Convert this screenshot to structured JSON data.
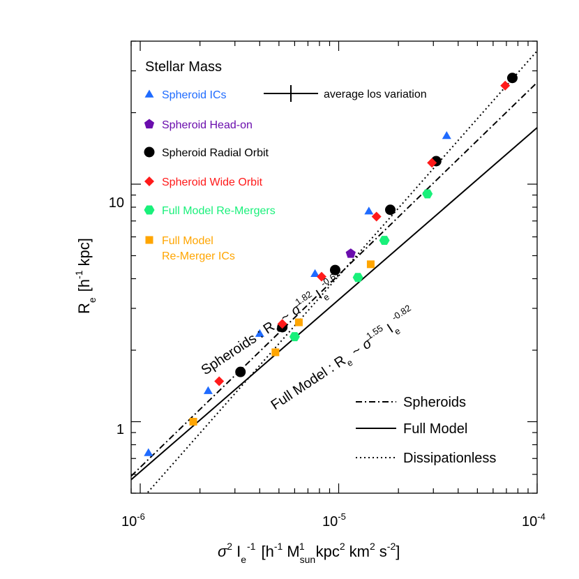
{
  "chart_data": {
    "type": "scatter",
    "title": "Stellar Mass",
    "x_axis": {
      "scale": "log",
      "range": [
        9e-07,
        0.0001
      ],
      "label_main": "σ",
      "label_sup1": "2",
      "label_I": "I",
      "label_sub_e": "e",
      "label_sup2": "-1",
      "label_units": {
        "open": "[h",
        "sup_a": "-1",
        "m": "M",
        "sub_sun": "sun",
        "sup_b": "-1",
        "kpc": "kpc",
        "sup_c": "2",
        "km": "km",
        "sup_d": "2",
        "s": "s",
        "sup_e": "-2",
        "close": "]"
      },
      "ticks": [
        {
          "value": 1e-06,
          "base": "10",
          "exp": "-6"
        },
        {
          "value": 1e-05,
          "base": "10",
          "exp": "-5"
        },
        {
          "value": 0.0001,
          "base": "10",
          "exp": "-4"
        }
      ]
    },
    "y_axis": {
      "scale": "log",
      "range": [
        0.5,
        40
      ],
      "label_main": "R",
      "label_sub": "e",
      "label_units": "[h",
      "label_sup": "-1",
      "label_tail": "kpc]",
      "ticks": [
        {
          "value": 1,
          "label": "1"
        },
        {
          "value": 10,
          "label": "10"
        }
      ]
    },
    "legend_items": [
      {
        "label": "Spheroid ICs",
        "color": "#1f6bff",
        "marker": "triangle"
      },
      {
        "label": "Spheroid Head-on",
        "color": "#6a0dad",
        "marker": "pentagon"
      },
      {
        "label": "Spheroid Radial Orbit",
        "color": "#000000",
        "marker": "circle"
      },
      {
        "label": "Spheroid Wide Orbit",
        "color": "#ff1a1a",
        "marker": "diamond"
      },
      {
        "label": "Full Model Re-Mergers",
        "color": "#19f07a",
        "marker": "hexagon"
      },
      {
        "label": "Full Model",
        "label2": "Re-Merger ICs",
        "color": "#ffa500",
        "marker": "square"
      }
    ],
    "errorbar_label": "average los variation",
    "line_legend": [
      {
        "label": "Spheroids",
        "style": "dashdot"
      },
      {
        "label": "Full Model",
        "style": "solid"
      },
      {
        "label": "Dissipationless",
        "style": "dotted"
      }
    ],
    "fit_lines": [
      {
        "name": "Spheroids",
        "style": "dashdot",
        "x": [
          9e-07,
          0.0001
        ],
        "y": [
          0.59,
          26.8
        ]
      },
      {
        "name": "Full Model",
        "style": "solid",
        "x": [
          9e-07,
          0.0001
        ],
        "y": [
          0.57,
          17.3
        ]
      },
      {
        "name": "Dissipationless",
        "style": "dotted",
        "x": [
          9e-07,
          0.0001
        ],
        "y": [
          0.42,
          36.4
        ]
      }
    ],
    "annotations": [
      {
        "text": "Spheroids : R",
        "sub": "e",
        "sim": "~",
        "sigma": "σ",
        "sup1": "1.82",
        "I": "I",
        "sub2": "e",
        "sup2": "-0.67"
      },
      {
        "text": "Full Model : R",
        "sub": "e",
        "sim": "~",
        "sigma": "σ",
        "sup1": "1.55",
        "I": "I",
        "sub2": "e",
        "sup2": "-0.82"
      }
    ],
    "series": [
      {
        "name": "Spheroid ICs",
        "marker": "triangle",
        "color": "#1f6bff",
        "points": [
          [
            1.1e-06,
            0.74
          ],
          [
            2.2e-06,
            1.35
          ],
          [
            4e-06,
            2.35
          ],
          [
            7.6e-06,
            4.2
          ],
          [
            1.42e-05,
            7.7
          ],
          [
            3.5e-05,
            16
          ]
        ]
      },
      {
        "name": "Spheroid Head-on",
        "marker": "pentagon",
        "color": "#6a0dad",
        "points": [
          [
            1.15e-05,
            5.1
          ]
        ]
      },
      {
        "name": "Spheroid Radial Orbit",
        "marker": "circle",
        "color": "#000000",
        "points": [
          [
            3.2e-06,
            1.62
          ],
          [
            5.2e-06,
            2.5
          ],
          [
            9.6e-06,
            4.35
          ],
          [
            1.82e-05,
            7.8
          ],
          [
            3.1e-05,
            12.5
          ],
          [
            7.5e-05,
            28
          ]
        ]
      },
      {
        "name": "Spheroid Wide Orbit",
        "marker": "diamond",
        "color": "#ff1a1a",
        "points": [
          [
            2.5e-06,
            1.48
          ],
          [
            5.2e-06,
            2.58
          ],
          [
            8.2e-06,
            4.08
          ],
          [
            1.55e-05,
            7.3
          ],
          [
            2.95e-05,
            12.3
          ],
          [
            6.9e-05,
            26
          ]
        ]
      },
      {
        "name": "Full Model Re-Mergers",
        "marker": "hexagon",
        "color": "#19f07a",
        "points": [
          [
            6e-06,
            2.28
          ],
          [
            1.25e-05,
            4.05
          ],
          [
            1.7e-05,
            5.8
          ],
          [
            2.8e-05,
            9.1
          ]
        ]
      },
      {
        "name": "Full Model Re-Merger ICs",
        "marker": "square",
        "color": "#ffa500",
        "points": [
          [
            1.85e-06,
            1.0
          ],
          [
            4.8e-06,
            1.96
          ],
          [
            6.3e-06,
            2.62
          ],
          [
            1.45e-05,
            4.6
          ]
        ]
      }
    ]
  }
}
